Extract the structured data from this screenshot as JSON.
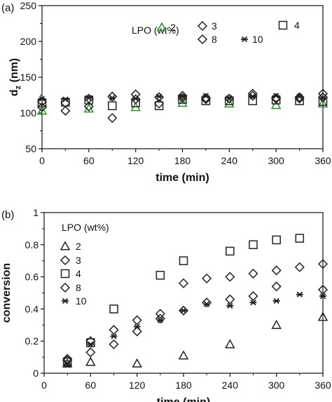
{
  "chart_data": [
    {
      "panel_label": "(a)",
      "type": "scatter",
      "xlabel": "time (min)",
      "ylabel": "d",
      "ylabel_sub": "z",
      "ylabel_suffix": " (nm)",
      "xlim": [
        0,
        360
      ],
      "ylim": [
        50,
        250
      ],
      "xticks": [
        0,
        60,
        120,
        180,
        240,
        300,
        360
      ],
      "yticks": [
        50,
        100,
        150,
        200,
        250
      ],
      "legend_title": "LPO (wt%)",
      "legend_position": "top-right",
      "series": [
        {
          "name": "2",
          "marker": "triangle",
          "color": "#2e8b2e",
          "x": [
            0,
            60,
            120,
            180,
            240,
            300,
            360
          ],
          "y": [
            103,
            106,
            108,
            114,
            113,
            111,
            113
          ]
        },
        {
          "name": "3",
          "marker": "diamond",
          "color": "#222222",
          "x": [
            0,
            30,
            60,
            90,
            120,
            150,
            180,
            210,
            240,
            270,
            300,
            330,
            360
          ],
          "y": [
            108,
            103,
            109,
            123,
            126,
            122,
            124,
            121,
            120,
            127,
            121,
            122,
            127
          ]
        },
        {
          "name": "4",
          "marker": "square",
          "color": "#222222",
          "x": [
            0,
            30,
            60,
            90,
            120,
            150,
            180,
            210,
            240,
            270,
            300,
            330,
            360
          ],
          "y": [
            114,
            115,
            118,
            110,
            114,
            110,
            119,
            117,
            117,
            117,
            118,
            117,
            116
          ]
        },
        {
          "name": "8",
          "marker": "diamond",
          "color": "#222222",
          "x": [
            0,
            30,
            60,
            90,
            120,
            150,
            180,
            210,
            240,
            270,
            300,
            330,
            360
          ],
          "y": [
            116,
            114,
            120,
            93,
            119,
            113,
            121,
            119,
            120,
            124,
            120,
            120,
            122
          ]
        },
        {
          "name": "10",
          "marker": "star",
          "color": "#222222",
          "x": [
            0,
            30,
            60,
            90,
            120,
            150,
            180,
            210,
            240,
            270,
            300,
            330,
            360
          ],
          "y": [
            120,
            119,
            121,
            121,
            120,
            123,
            123,
            124,
            121,
            123,
            124,
            123,
            121
          ]
        }
      ]
    },
    {
      "panel_label": "(b)",
      "type": "scatter",
      "xlabel": "time (min)",
      "ylabel": "conversion",
      "xlim": [
        0,
        360
      ],
      "ylim": [
        0,
        1
      ],
      "xticks": [
        0,
        60,
        120,
        180,
        240,
        300,
        360
      ],
      "yticks": [
        0,
        0.2,
        0.4,
        0.6,
        0.8,
        1
      ],
      "ytick_labels": [
        "0",
        "0.2",
        "0.4",
        "0.6",
        "0.8",
        "1"
      ],
      "legend_title": "LPO (wt%)",
      "legend_position": "top-left",
      "series": [
        {
          "name": "2",
          "marker": "triangle",
          "color": "#222222",
          "x": [
            30,
            60,
            120,
            180,
            240,
            300,
            360
          ],
          "y": [
            0.06,
            0.07,
            0.06,
            0.11,
            0.18,
            0.3,
            0.35
          ]
        },
        {
          "name": "3",
          "marker": "diamond",
          "color": "#222222",
          "x": [
            30,
            60,
            90,
            120,
            150,
            180,
            210,
            240,
            270,
            300,
            330,
            360
          ],
          "y": [
            0.08,
            0.13,
            0.18,
            0.26,
            0.34,
            0.39,
            0.44,
            0.46,
            0.48,
            0.54,
            0.66,
            0.68
          ]
        },
        {
          "name": "4",
          "marker": "square",
          "color": "#222222",
          "x": [
            30,
            60,
            90,
            150,
            180,
            240,
            270,
            300,
            330
          ],
          "y": [
            0.07,
            0.19,
            0.4,
            0.61,
            0.7,
            0.76,
            0.8,
            0.83,
            0.84
          ]
        },
        {
          "name": "8",
          "marker": "diamond",
          "color": "#222222",
          "x": [
            30,
            60,
            90,
            120,
            150,
            180,
            210,
            240,
            270,
            300,
            360
          ],
          "y": [
            0.09,
            0.2,
            0.27,
            0.33,
            0.37,
            0.56,
            0.59,
            0.6,
            0.62,
            0.64,
            0.52
          ]
        },
        {
          "name": "10",
          "marker": "star",
          "color": "#222222",
          "x": [
            30,
            60,
            90,
            120,
            150,
            180,
            210,
            240,
            270,
            300,
            330,
            360
          ],
          "y": [
            0.05,
            0.18,
            0.23,
            0.29,
            0.33,
            0.39,
            0.43,
            0.42,
            0.44,
            0.45,
            0.49,
            0.48
          ]
        }
      ]
    }
  ]
}
